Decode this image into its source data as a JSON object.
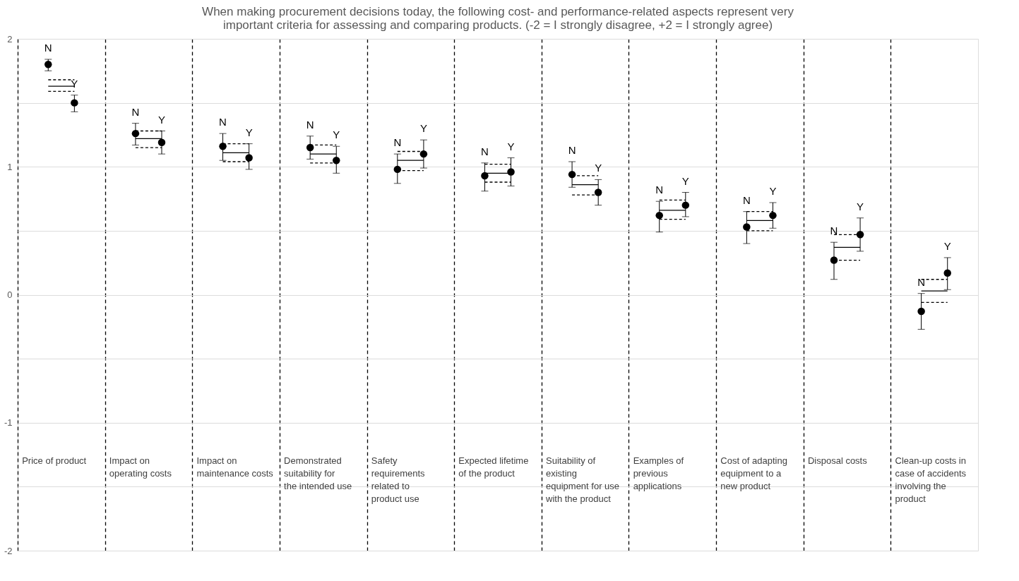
{
  "chart_data": {
    "type": "scatter",
    "title": "When making procurement decisions today, the following cost- and performance-related aspects represent very important criteria for assessing and comparing products. (-2 = I strongly disagree, +2 = I strongly agree)",
    "categories": [
      "Price of product",
      "Impact on operating costs",
      "Impact on maintenance costs",
      "Demonstrated suitability for the intended use",
      "Safety requirements related to product use",
      "Expected lifetime of the product",
      "Suitability of existing equipment for use with the product",
      "Examples of previous applications",
      "Cost of adapting equipment to a new product",
      "Disposal costs",
      "Clean-up costs in case of accidents involving the product"
    ],
    "series": [
      {
        "name": "N",
        "color": "#000000",
        "marker": "circle",
        "values": [
          1.8,
          1.26,
          1.16,
          1.15,
          0.98,
          0.93,
          0.94,
          0.62,
          0.53,
          0.27,
          -0.13
        ],
        "errors": [
          [
            1.75,
            1.84
          ],
          [
            1.17,
            1.34
          ],
          [
            1.05,
            1.26
          ],
          [
            1.06,
            1.24
          ],
          [
            0.87,
            1.1
          ],
          [
            0.81,
            1.03
          ],
          [
            0.84,
            1.04
          ],
          [
            0.49,
            0.73
          ],
          [
            0.4,
            0.65
          ],
          [
            0.12,
            0.41
          ],
          [
            -0.27,
            0.01
          ]
        ]
      },
      {
        "name": "Y",
        "color": "#000000",
        "marker": "circle",
        "values": [
          1.5,
          1.19,
          1.07,
          1.05,
          1.1,
          0.96,
          0.8,
          0.7,
          0.62,
          0.47,
          0.17
        ],
        "errors": [
          [
            1.43,
            1.56
          ],
          [
            1.1,
            1.28
          ],
          [
            0.98,
            1.18
          ],
          [
            0.95,
            1.16
          ],
          [
            0.99,
            1.21
          ],
          [
            0.85,
            1.07
          ],
          [
            0.7,
            0.9
          ],
          [
            0.61,
            0.8
          ],
          [
            0.52,
            0.72
          ],
          [
            0.34,
            0.6
          ],
          [
            0.04,
            0.29
          ]
        ]
      },
      {
        "type": "box",
        "color": "#000000",
        "boxes": [
          {
            "low": 1.59,
            "q1": 1.59,
            "median": 1.63,
            "q3": 1.68,
            "high": 1.68
          },
          {
            "low": 1.15,
            "q1": 1.15,
            "median": 1.22,
            "q3": 1.28,
            "high": 1.28
          },
          {
            "low": 1.04,
            "q1": 1.04,
            "median": 1.11,
            "q3": 1.18,
            "high": 1.18
          },
          {
            "low": 1.03,
            "q1": 1.03,
            "median": 1.1,
            "q3": 1.17,
            "high": 1.17
          },
          {
            "low": 0.97,
            "q1": 0.97,
            "median": 1.05,
            "q3": 1.12,
            "high": 1.12
          },
          {
            "low": 0.88,
            "q1": 0.88,
            "median": 0.95,
            "q3": 1.02,
            "high": 1.02
          },
          {
            "low": 0.78,
            "q1": 0.78,
            "median": 0.86,
            "q3": 0.93,
            "high": 0.93
          },
          {
            "low": 0.59,
            "q1": 0.59,
            "median": 0.66,
            "q3": 0.74,
            "high": 0.74
          },
          {
            "low": 0.5,
            "q1": 0.5,
            "median": 0.58,
            "q3": 0.65,
            "high": 0.65
          },
          {
            "low": 0.27,
            "q1": 0.27,
            "median": 0.37,
            "q3": 0.47,
            "high": 0.47
          },
          {
            "low": -0.06,
            "q1": -0.06,
            "median": 0.03,
            "q3": 0.12,
            "high": 0.12
          }
        ]
      }
    ],
    "ylim": [
      -2,
      2
    ],
    "yticks": [
      -2,
      {
        "value": -1.5,
        "label": null
      },
      -1,
      {
        "value": -0.5,
        "label": null
      },
      0,
      {
        "value": 0.5,
        "label": null
      },
      1,
      {
        "value": 1.5,
        "label": null
      },
      2
    ],
    "grid": true,
    "legend": false
  }
}
